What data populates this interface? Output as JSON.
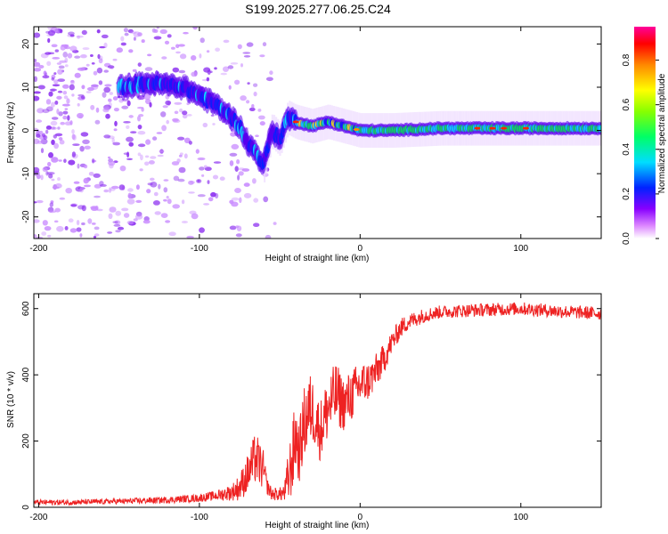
{
  "title": "S199.2025.277.06.25.C24",
  "colors": {
    "snr_line": "#ee2222",
    "colormap": [
      "#ffffff",
      "#cc44ff",
      "#5500ee",
      "#0022ff",
      "#00eeff",
      "#00ff44",
      "#ffff00",
      "#ff8800",
      "#ff0000",
      "#ff0088"
    ]
  },
  "chart_data": [
    {
      "type": "heatmap",
      "title": "",
      "xlabel": "Height of straight line (km)",
      "ylabel": "Frequency (Hz)",
      "xlim": [
        -203,
        150
      ],
      "ylim": [
        -25,
        24
      ],
      "xticks": [
        -200,
        -100,
        0,
        100
      ],
      "xtick_labels": [
        "-200",
        "-100",
        "0",
        "100"
      ],
      "yticks": [
        20,
        10,
        0,
        -10,
        -20
      ],
      "ytick_labels": [
        "20",
        "10",
        "0",
        "-10",
        "-20"
      ],
      "ridge": {
        "description": "peak spectral amplitude ridge (height km, frequency Hz)",
        "x": [
          -150,
          -130,
          -110,
          -100,
          -90,
          -80,
          -75,
          -70,
          -65,
          -60,
          -55,
          -50,
          -45,
          -40,
          -30,
          -20,
          -10,
          0,
          20,
          50,
          100,
          150
        ],
        "y": [
          10,
          11,
          10,
          8,
          6,
          3,
          1,
          -3,
          -5,
          -8,
          0,
          -2,
          3,
          2,
          1,
          2,
          1,
          0,
          0,
          0.5,
          0.5,
          0.5
        ]
      },
      "colorbar": {
        "label": "Normalized spectral amplitude",
        "range": [
          0,
          0.95
        ],
        "ticks": [
          0.0,
          0.2,
          0.4,
          0.6,
          0.8
        ],
        "tick_labels": [
          "0.0",
          "0.2",
          "0.4",
          "0.6",
          "0.8"
        ]
      }
    },
    {
      "type": "line",
      "title": "",
      "xlabel": "Height of straight line (km)",
      "ylabel": "SNR (10 * v/v)",
      "xlim": [
        -203,
        150
      ],
      "ylim": [
        0,
        645
      ],
      "xticks": [
        -200,
        -100,
        0,
        100
      ],
      "xtick_labels": [
        "-200",
        "-100",
        "0",
        "100"
      ],
      "yticks": [
        0,
        200,
        400,
        600
      ],
      "ytick_labels": [
        "0",
        "200",
        "400",
        "600"
      ],
      "series": [
        {
          "name": "SNR",
          "x": [
            -203,
            -180,
            -150,
            -120,
            -100,
            -90,
            -80,
            -75,
            -70,
            -65,
            -60,
            -58,
            -55,
            -50,
            -47,
            -45,
            -42,
            -40,
            -38,
            -35,
            -32,
            -30,
            -25,
            -20,
            -15,
            -10,
            -5,
            0,
            5,
            10,
            15,
            20,
            25,
            30,
            40,
            50,
            70,
            100,
            130,
            150
          ],
          "values": [
            15,
            15,
            18,
            22,
            28,
            35,
            45,
            60,
            100,
            150,
            110,
            65,
            40,
            40,
            45,
            80,
            150,
            220,
            160,
            250,
            290,
            300,
            230,
            300,
            340,
            310,
            340,
            370,
            380,
            410,
            450,
            500,
            540,
            560,
            580,
            590,
            595,
            600,
            590,
            585
          ]
        }
      ],
      "noise_amplitude": [
        8,
        8,
        8,
        10,
        12,
        15,
        25,
        40,
        60,
        80,
        60,
        25,
        20,
        20,
        30,
        80,
        110,
        120,
        90,
        110,
        120,
        100,
        90,
        100,
        100,
        80,
        80,
        70,
        60,
        55,
        45,
        35,
        30,
        25,
        22,
        20,
        20,
        20,
        20,
        20
      ]
    }
  ]
}
